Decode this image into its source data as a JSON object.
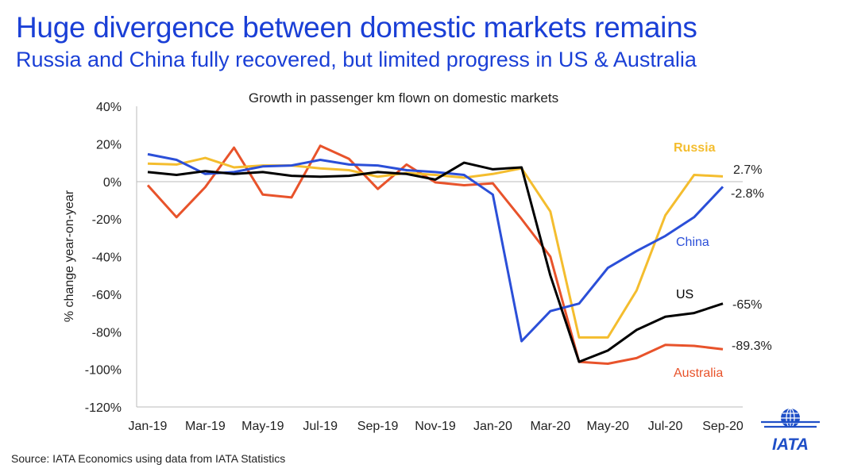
{
  "header": {
    "title": "Huge divergence between domestic markets remains",
    "subtitle": "Russia and China fully recovered, but limited progress in US & Australia"
  },
  "footer": {
    "source": "Source: IATA Economics using data from IATA Statistics",
    "logo_text": "IATA"
  },
  "chart_data": {
    "type": "line",
    "title": "Growth in passenger km flown on domestic markets",
    "xlabel": "",
    "ylabel": "% change year-on-year",
    "ylim": [
      -120,
      40
    ],
    "yticks": [
      40,
      20,
      0,
      -20,
      -40,
      -60,
      -80,
      -100,
      -120
    ],
    "ytick_labels": [
      "40%",
      "20%",
      "0%",
      "-20%",
      "-40%",
      "-60%",
      "-80%",
      "-100%",
      "-120%"
    ],
    "categories": [
      "Jan-19",
      "Feb-19",
      "Mar-19",
      "Apr-19",
      "May-19",
      "Jun-19",
      "Jul-19",
      "Aug-19",
      "Sep-19",
      "Oct-19",
      "Nov-19",
      "Dec-19",
      "Jan-20",
      "Feb-20",
      "Mar-20",
      "Apr-20",
      "May-20",
      "Jun-20",
      "Jul-20",
      "Aug-20",
      "Sep-20"
    ],
    "xtick_labels": [
      "Jan-19",
      "Mar-19",
      "May-19",
      "Jul-19",
      "Sep-19",
      "Nov-19",
      "Jan-20",
      "Mar-20",
      "May-20",
      "Jul-20",
      "Sep-20"
    ],
    "grid": false,
    "legend": "inline labels",
    "series": [
      {
        "name": "Russia",
        "color": "#f4bd2e",
        "end_label": "2.7%",
        "values": [
          9.5,
          9,
          12.5,
          7.5,
          8.5,
          8.5,
          7,
          6,
          2.5,
          4.5,
          3.5,
          2,
          4,
          7,
          -16,
          -83,
          -83,
          -58,
          -18,
          3.5,
          2.7
        ]
      },
      {
        "name": "China",
        "color": "#2b4fd8",
        "end_label": "-2.8%",
        "values": [
          14.5,
          11.5,
          4,
          5,
          8,
          8.5,
          11.5,
          9,
          8.5,
          6,
          5,
          3.5,
          -7,
          -85,
          -69,
          -65,
          -46,
          -37,
          -29,
          -19,
          -2.8
        ]
      },
      {
        "name": "US",
        "color": "#000000",
        "end_label": "-65%",
        "values": [
          5,
          3.5,
          5.5,
          4,
          5,
          3,
          2.5,
          3,
          5,
          4,
          1,
          10,
          6.5,
          7.5,
          -50,
          -96,
          -90,
          -79,
          -72,
          -70,
          -65
        ]
      },
      {
        "name": "Australia",
        "color": "#e8532b",
        "end_label": "-89.3%",
        "values": [
          -2,
          -19,
          -3,
          18,
          -7,
          -8.5,
          19,
          12,
          -4,
          9,
          -0.5,
          -2,
          -1,
          -20,
          -40,
          -96,
          -97,
          -94,
          -87,
          -87.5,
          -89.3
        ]
      }
    ]
  }
}
